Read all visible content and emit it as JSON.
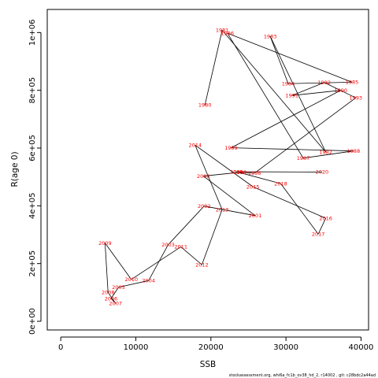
{
  "chart_data": {
    "type": "line",
    "xlabel": "SSB",
    "ylabel": "R(age 0)",
    "xlim": [
      -1800,
      41000
    ],
    "ylim": [
      -30000,
      1080000
    ],
    "x_ticks": [
      0,
      10000,
      20000,
      30000,
      40000
    ],
    "x_tick_labels": [
      "0",
      "10000",
      "20000",
      "30000",
      "40000"
    ],
    "y_ticks": [
      0,
      200000,
      400000,
      600000,
      800000,
      1000000
    ],
    "y_tick_labels": [
      "0e+00",
      "2e+05",
      "4e+05",
      "6e+05",
      "8e+05",
      "1e+06"
    ],
    "grid": false,
    "line_color": "#000000",
    "label_color": "#ff0000",
    "points": [
      {
        "year": "1980",
        "x": 19200,
        "y": 749000
      },
      {
        "year": "1981",
        "x": 21500,
        "y": 1008000
      },
      {
        "year": "1982",
        "x": 35300,
        "y": 586000
      },
      {
        "year": "1983",
        "x": 27900,
        "y": 987000
      },
      {
        "year": "1984",
        "x": 30300,
        "y": 823000
      },
      {
        "year": "1985",
        "x": 38800,
        "y": 828000
      },
      {
        "year": "1986",
        "x": 22200,
        "y": 998000
      },
      {
        "year": "1987",
        "x": 32300,
        "y": 565000
      },
      {
        "year": "1988",
        "x": 39000,
        "y": 590000
      },
      {
        "year": "1989",
        "x": 22700,
        "y": 601000
      },
      {
        "year": "1990",
        "x": 37300,
        "y": 800000
      },
      {
        "year": "1991",
        "x": 30800,
        "y": 782000
      },
      {
        "year": "1992",
        "x": 35100,
        "y": 827000
      },
      {
        "year": "1993",
        "x": 39300,
        "y": 774000
      },
      {
        "year": "1998",
        "x": 25800,
        "y": 513000
      },
      {
        "year": "1999",
        "x": 23900,
        "y": 516000
      },
      {
        "year": "2000",
        "x": 19000,
        "y": 503000
      },
      {
        "year": "2001",
        "x": 25900,
        "y": 366000
      },
      {
        "year": "2002",
        "x": 19100,
        "y": 399000
      },
      {
        "year": "2003",
        "x": 14300,
        "y": 265000
      },
      {
        "year": "2004",
        "x": 11700,
        "y": 141000
      },
      {
        "year": "2005",
        "x": 7700,
        "y": 118000
      },
      {
        "year": "2006",
        "x": 6700,
        "y": 79000
      },
      {
        "year": "2007",
        "x": 7300,
        "y": 62000
      },
      {
        "year": "2008",
        "x": 6300,
        "y": 100000
      },
      {
        "year": "2009",
        "x": 5900,
        "y": 271000
      },
      {
        "year": "2010",
        "x": 9400,
        "y": 145000
      },
      {
        "year": "2011",
        "x": 16000,
        "y": 258000
      },
      {
        "year": "2012",
        "x": 18800,
        "y": 196000
      },
      {
        "year": "2013",
        "x": 21500,
        "y": 387000
      },
      {
        "year": "2014",
        "x": 17900,
        "y": 610000
      },
      {
        "year": "2015",
        "x": 25600,
        "y": 466000
      },
      {
        "year": "2016",
        "x": 35300,
        "y": 357000
      },
      {
        "year": "2017",
        "x": 34300,
        "y": 302000
      },
      {
        "year": "2018",
        "x": 29300,
        "y": 477000
      },
      {
        "year": "2019",
        "x": 23400,
        "y": 518000
      },
      {
        "year": "2020",
        "x": 34800,
        "y": 517000
      }
    ],
    "footnote": "stockassessment.org, whi6a_fc1b_ov38_hd_2, r14002 , git: c28bdc2a44ad"
  }
}
